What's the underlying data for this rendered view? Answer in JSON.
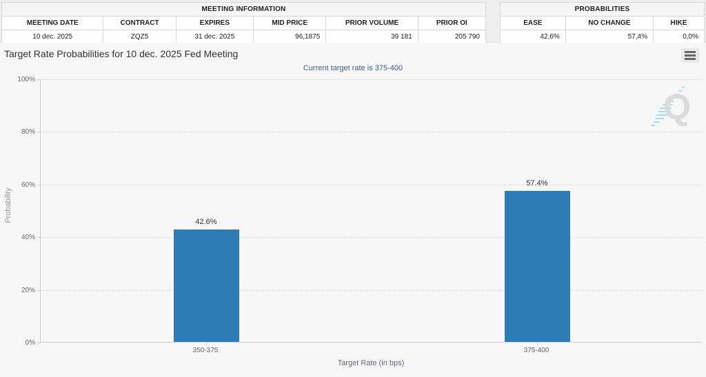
{
  "meeting_information": {
    "title": "MEETING INFORMATION",
    "columns": [
      "MEETING DATE",
      "CONTRACT",
      "EXPIRES",
      "MID PRICE",
      "PRIOR VOLUME",
      "PRIOR OI"
    ],
    "values": [
      "10 dec. 2025",
      "ZQZ5",
      "31 dec. 2025",
      "96,1875",
      "39 181",
      "205 790"
    ]
  },
  "probabilities": {
    "title": "PROBABILITIES",
    "columns": [
      "EASE",
      "NO CHANGE",
      "HIKE"
    ],
    "values": [
      "42,6%",
      "57,4%",
      "0,0%"
    ]
  },
  "chart": {
    "title": "Target Rate Probabilities for 10 dec. 2025 Fed Meeting",
    "subtitle": "Current target rate is 375-400",
    "menu_icon": "hamburger-menu-icon",
    "watermark_icon": "q-logo-watermark"
  },
  "chart_data": {
    "type": "bar",
    "title": "Target Rate Probabilities for 10 dec. 2025 Fed Meeting",
    "subtitle": "Current target rate is 375-400",
    "categories": [
      "350-375",
      "375-400"
    ],
    "values": [
      42.6,
      57.4
    ],
    "data_labels": [
      "42.6%",
      "57.4%"
    ],
    "xlabel": "Target Rate (in bps)",
    "ylabel": "Probability",
    "ylim": [
      0,
      100
    ],
    "ytick_labels": [
      "0%",
      "20%",
      "40%",
      "60%",
      "80%",
      "100%"
    ],
    "ytick_values": [
      0,
      20,
      40,
      60,
      80,
      100
    ],
    "grid": true,
    "grid_style": "dotted",
    "legend": "none",
    "bar_color": "#2d7cb8"
  }
}
